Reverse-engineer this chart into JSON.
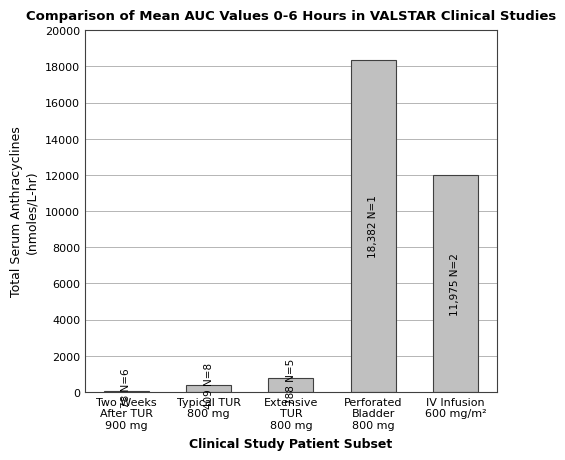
{
  "title": "Comparison of Mean AUC Values 0-6 Hours in VALSTAR Clinical Studies",
  "categories": [
    "Two Weeks\nAfter TUR\n900 mg",
    "Typical TUR\n800 mg",
    "Extensive\nTUR\n800 mg",
    "Perforated\nBladder\n800 mg",
    "IV Infusion\n600 mg/m²"
  ],
  "values": [
    78,
    409,
    788,
    18382,
    11975
  ],
  "bar_labels": [
    "78 N=6",
    "409 N=8",
    "788 N=5",
    "18,382 N=1",
    "11,975 N=2"
  ],
  "bar_color": "#c0c0c0",
  "bar_edge_color": "#404040",
  "xlabel": "Clinical Study Patient Subset",
  "ylabel": "Total Serum Anthracyclines\n(nmoles/L-hr)",
  "ylim": [
    0,
    20000
  ],
  "yticks": [
    0,
    2000,
    4000,
    6000,
    8000,
    10000,
    12000,
    14000,
    16000,
    18000,
    20000
  ],
  "title_fontsize": 9.5,
  "axis_label_fontsize": 9,
  "tick_fontsize": 8,
  "bar_label_fontsize": 7.5,
  "background_color": "#ffffff",
  "plot_background_color": "#ffffff",
  "grid_color": "#aaaaaa"
}
